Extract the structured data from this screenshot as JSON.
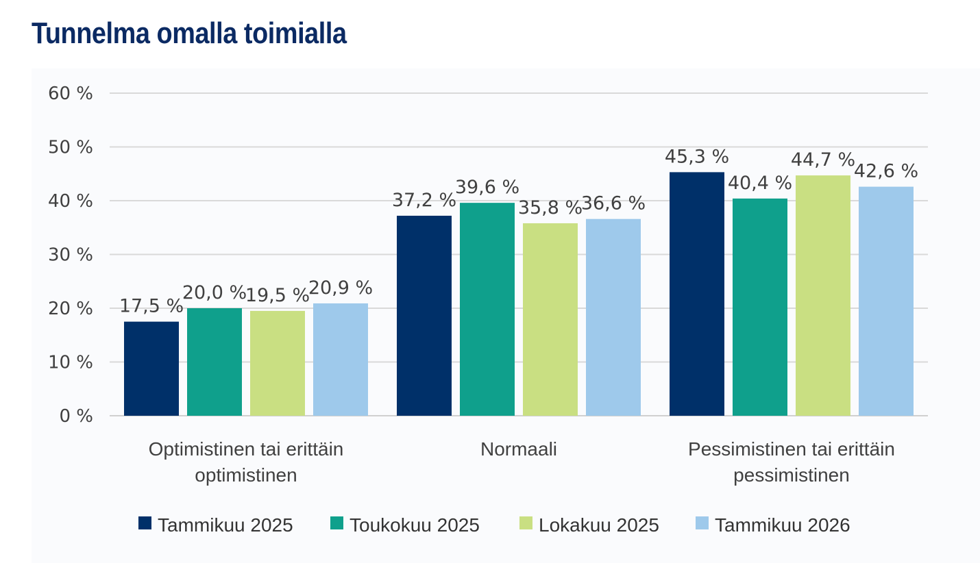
{
  "chart_data": {
    "type": "bar",
    "title": "Tunnelma omalla toimialla",
    "categories": [
      [
        "Optimistinen tai erittäin",
        "optimistinen"
      ],
      [
        "Normaali"
      ],
      [
        "Pessimistinen tai erittäin",
        "pessimistinen"
      ]
    ],
    "series": [
      {
        "name": "Tammikuu 2025",
        "color": "#003069",
        "values": [
          17.5,
          37.2,
          45.3
        ],
        "labels": [
          "17,5 %",
          "37,2 %",
          "45,3 %"
        ]
      },
      {
        "name": "Toukokuu 2025",
        "color": "#0fa08c",
        "values": [
          20.0,
          39.6,
          40.4
        ],
        "labels": [
          "20,0 %",
          "39,6 %",
          "40,4 %"
        ]
      },
      {
        "name": "Lokakuu 2025",
        "color": "#c9df82",
        "values": [
          19.5,
          35.8,
          44.7
        ],
        "labels": [
          "19,5 %",
          "35,8 %",
          "44,7 %"
        ]
      },
      {
        "name": "Tammikuu 2026",
        "color": "#9ec9eb",
        "values": [
          20.9,
          36.6,
          42.6
        ],
        "labels": [
          "20,9 %",
          "36,6 %",
          "42,6 %"
        ]
      }
    ],
    "yticks": [
      0,
      10,
      20,
      30,
      40,
      50,
      60
    ],
    "ytick_labels": [
      "0 %",
      "10 %",
      "20 %",
      "30 %",
      "40 %",
      "50 %",
      "60 %"
    ],
    "ylim": [
      0,
      60
    ],
    "grid": true,
    "legend": "bottom"
  }
}
